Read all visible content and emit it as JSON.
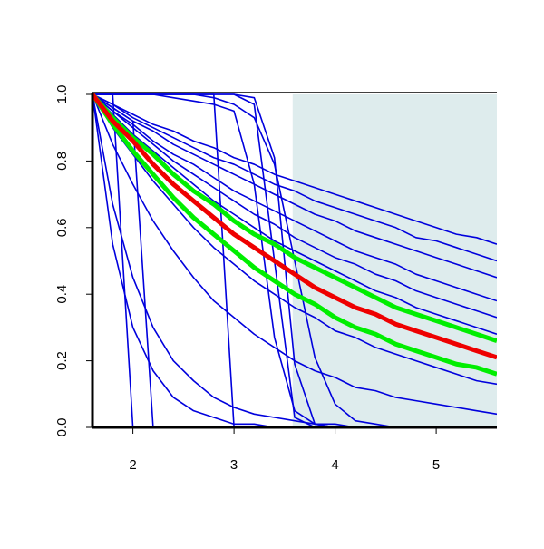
{
  "chart_data": {
    "type": "line",
    "x": [
      1.6,
      1.8,
      2.0,
      2.2,
      2.4,
      2.6,
      2.8,
      3.0,
      3.2,
      3.4,
      3.6,
      3.8,
      4.0,
      4.2,
      4.4,
      4.6,
      4.8,
      5.0,
      5.2,
      5.4,
      5.6
    ],
    "xlim": [
      1.6,
      5.6
    ],
    "xticks": [
      2,
      3,
      4,
      5
    ],
    "ylim": [
      0,
      1
    ],
    "yticks": [
      {
        "value": 0,
        "label": "0.0"
      },
      0.2,
      0.4,
      0.6,
      0.8,
      {
        "value": 1,
        "label": "1.0"
      }
    ],
    "shade_xlim": [
      3.58,
      5.6
    ],
    "shade_color": "#deeced",
    "series": [
      {
        "color": "#0000dd",
        "linewidth": 1.6,
        "values": [
          1,
          0.97,
          0.94,
          0.91,
          0.89,
          0.86,
          0.84,
          0.81,
          0.79,
          0.76,
          0.74,
          0.72,
          0.7,
          0.68,
          0.66,
          0.64,
          0.62,
          0.6,
          0.58,
          0.57,
          0.55
        ]
      },
      {
        "color": "#0000dd",
        "linewidth": 1.6,
        "values": [
          1,
          0.97,
          0.93,
          0.9,
          0.87,
          0.84,
          0.81,
          0.79,
          0.76,
          0.73,
          0.71,
          0.68,
          0.66,
          0.64,
          0.62,
          0.6,
          0.57,
          0.56,
          0.54,
          0.52,
          0.5
        ]
      },
      {
        "color": "#0000dd",
        "linewidth": 1.6,
        "values": [
          1,
          0.96,
          0.92,
          0.89,
          0.85,
          0.82,
          0.79,
          0.76,
          0.73,
          0.7,
          0.67,
          0.64,
          0.62,
          0.59,
          0.57,
          0.55,
          0.53,
          0.51,
          0.49,
          0.47,
          0.45
        ]
      },
      {
        "color": "#0000dd",
        "linewidth": 1.6,
        "values": [
          1,
          0.95,
          0.91,
          0.86,
          0.82,
          0.79,
          0.75,
          0.71,
          0.68,
          0.65,
          0.62,
          0.59,
          0.56,
          0.53,
          0.51,
          0.49,
          0.46,
          0.44,
          0.42,
          0.4,
          0.38
        ]
      },
      {
        "color": "#0000dd",
        "linewidth": 1.6,
        "values": [
          1,
          0.95,
          0.9,
          0.85,
          0.8,
          0.76,
          0.72,
          0.68,
          0.64,
          0.61,
          0.57,
          0.54,
          0.51,
          0.49,
          0.46,
          0.44,
          0.41,
          0.39,
          0.37,
          0.35,
          0.33
        ]
      },
      {
        "color": "#0000dd",
        "linewidth": 1.6,
        "values": [
          1,
          0.94,
          0.88,
          0.83,
          0.78,
          0.73,
          0.68,
          0.64,
          0.6,
          0.56,
          0.53,
          0.5,
          0.47,
          0.44,
          0.41,
          0.39,
          0.36,
          0.34,
          0.32,
          0.3,
          0.28
        ]
      },
      {
        "color": "#0000dd",
        "linewidth": 1.6,
        "values": [
          1,
          0.9,
          0.82,
          0.74,
          0.67,
          0.6,
          0.54,
          0.49,
          0.44,
          0.4,
          0.36,
          0.33,
          0.29,
          0.27,
          0.24,
          0.22,
          0.2,
          0.18,
          0.16,
          0.14,
          0.13
        ]
      },
      {
        "color": "#0000dd",
        "linewidth": 1.6,
        "values": [
          1,
          0.85,
          0.73,
          0.62,
          0.53,
          0.45,
          0.38,
          0.33,
          0.28,
          0.24,
          0.2,
          0.17,
          0.15,
          0.12,
          0.11,
          0.09,
          0.08,
          0.07,
          0.06,
          0.05,
          0.04
        ]
      },
      {
        "color": "#0000dd",
        "linewidth": 1.6,
        "values": [
          1,
          0.55,
          0.3,
          0.17,
          0.09,
          0.05,
          0.03,
          0.01,
          0.01,
          0,
          0,
          0,
          0,
          0,
          0,
          0,
          0,
          0,
          0,
          0,
          0
        ]
      },
      {
        "color": "#0000dd",
        "linewidth": 1.6,
        "values": [
          1,
          0.67,
          0.45,
          0.3,
          0.2,
          0.14,
          0.09,
          0.06,
          0.04,
          0.03,
          0.02,
          0.01,
          0.01,
          0,
          0,
          0,
          0,
          0,
          0,
          0,
          0
        ]
      },
      {
        "color": "#0000dd",
        "linewidth": 1.6,
        "values": [
          1,
          1,
          0,
          0,
          0,
          0,
          0,
          0,
          0,
          0,
          0,
          0,
          0,
          0,
          0,
          0,
          0,
          0,
          0,
          0,
          0
        ]
      },
      {
        "color": "#0000dd",
        "linewidth": 1.6,
        "values": [
          1,
          0.96,
          0.92,
          0,
          0,
          0,
          0,
          0,
          0,
          0,
          0,
          0,
          0,
          0,
          0,
          0,
          0,
          0,
          0,
          0,
          0
        ]
      },
      {
        "color": "#0000dd",
        "linewidth": 1.6,
        "values": [
          1,
          1,
          1,
          1,
          1,
          1,
          1,
          0,
          0,
          0,
          0,
          0,
          0,
          0,
          0,
          0,
          0,
          0,
          0,
          0,
          0
        ]
      },
      {
        "color": "#0000dd",
        "linewidth": 1.6,
        "values": [
          1,
          1,
          1,
          1,
          1,
          1,
          1,
          1,
          0.97,
          0.5,
          0.03,
          0,
          0,
          0,
          0,
          0,
          0,
          0,
          0,
          0,
          0
        ]
      },
      {
        "color": "#0000dd",
        "linewidth": 1.6,
        "values": [
          1,
          1,
          1,
          1,
          1,
          1,
          1,
          1,
          0.99,
          0.81,
          0.19,
          0.01,
          0,
          0,
          0,
          0,
          0,
          0,
          0,
          0,
          0
        ]
      },
      {
        "color": "#0000dd",
        "linewidth": 1.6,
        "values": [
          1,
          1,
          1,
          1,
          0.99,
          0.98,
          0.97,
          0.95,
          0.73,
          0.27,
          0.05,
          0.01,
          0,
          0,
          0,
          0,
          0,
          0,
          0,
          0,
          0
        ]
      },
      {
        "color": "#0000dd",
        "linewidth": 1.6,
        "values": [
          1,
          1,
          1,
          1,
          1,
          1,
          0.99,
          0.97,
          0.93,
          0.79,
          0.5,
          0.21,
          0.07,
          0.02,
          0.01,
          0,
          0,
          0,
          0,
          0,
          0
        ]
      },
      {
        "color": "#00ee00",
        "linewidth": 5,
        "values": [
          1,
          0.93,
          0.87,
          0.82,
          0.76,
          0.71,
          0.67,
          0.62,
          0.58,
          0.55,
          0.51,
          0.48,
          0.45,
          0.42,
          0.39,
          0.36,
          0.34,
          0.32,
          0.3,
          0.28,
          0.26
        ]
      },
      {
        "color": "#00ee00",
        "linewidth": 5,
        "values": [
          1,
          0.91,
          0.83,
          0.76,
          0.69,
          0.63,
          0.58,
          0.53,
          0.48,
          0.44,
          0.4,
          0.37,
          0.33,
          0.3,
          0.28,
          0.25,
          0.23,
          0.21,
          0.19,
          0.18,
          0.16
        ]
      },
      {
        "color": "#ee0000",
        "linewidth": 5,
        "values": [
          1,
          0.92,
          0.86,
          0.79,
          0.73,
          0.68,
          0.63,
          0.58,
          0.54,
          0.5,
          0.46,
          0.42,
          0.39,
          0.36,
          0.34,
          0.31,
          0.29,
          0.27,
          0.25,
          0.23,
          0.21
        ]
      }
    ]
  }
}
